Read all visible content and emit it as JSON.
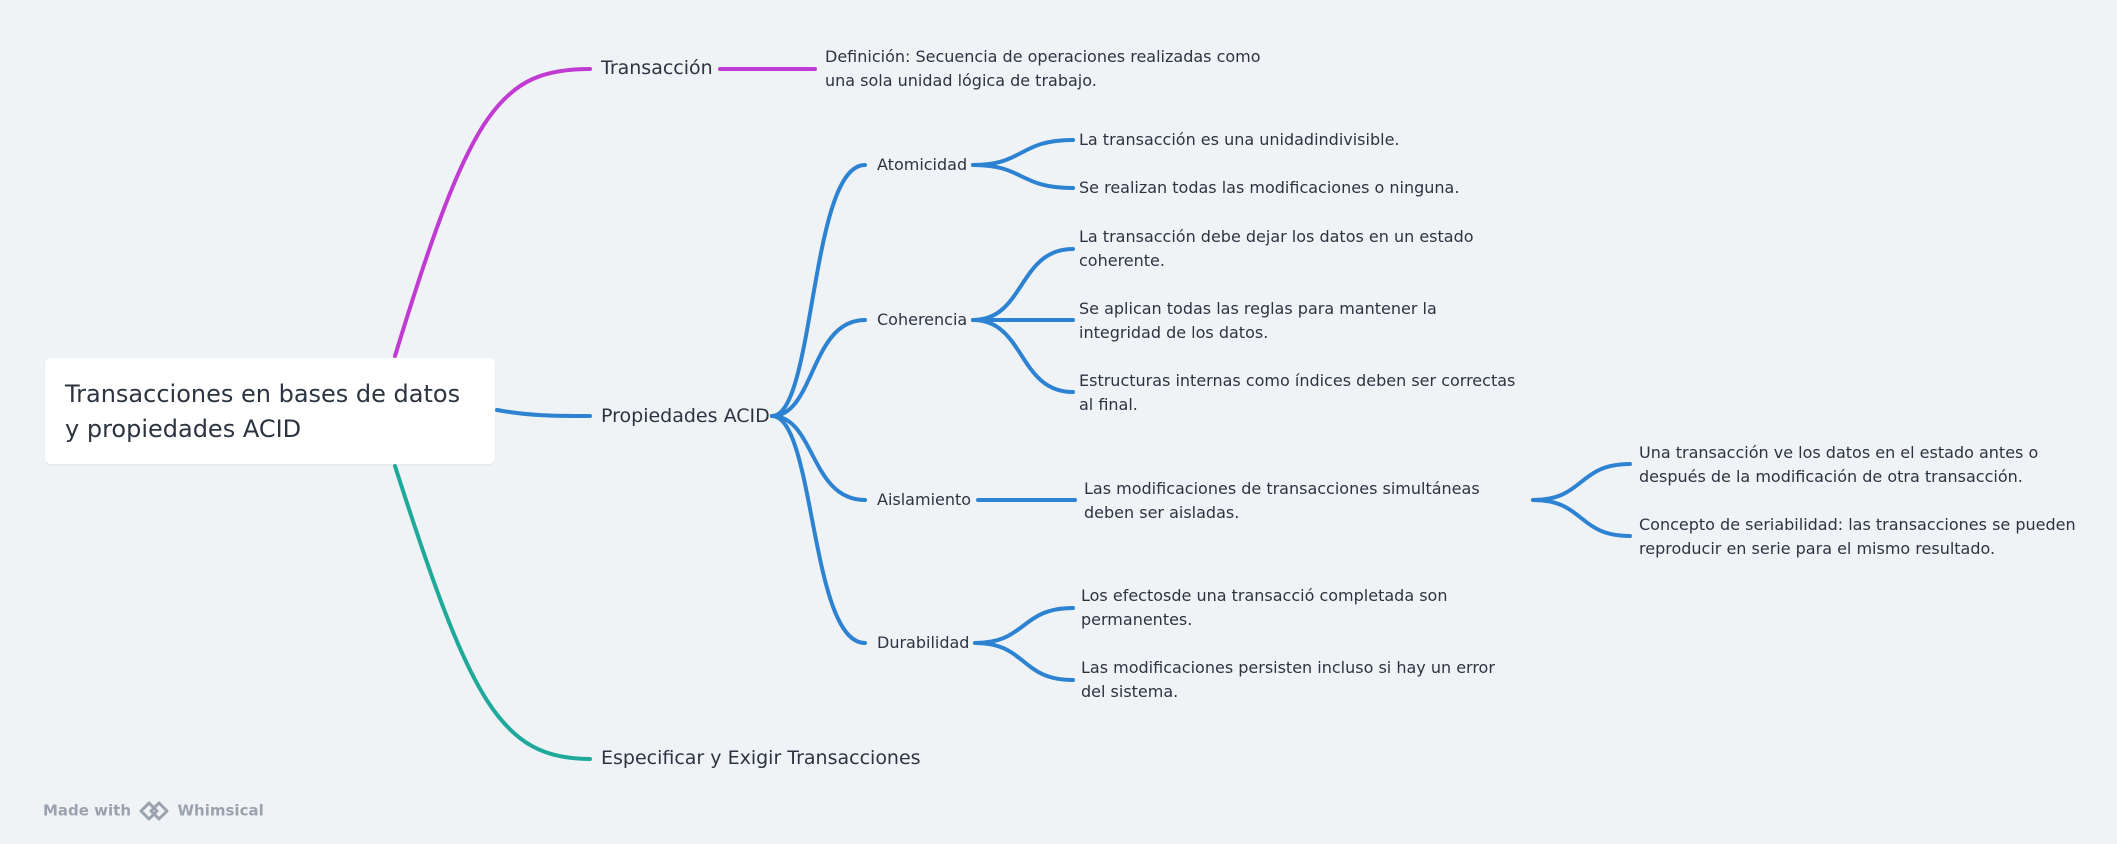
{
  "root": {
    "title": "Transacciones en bases de datos y propiedades ACID"
  },
  "branches": {
    "transaccion": {
      "label": "Transacción",
      "color": "#c03bd1",
      "definition": "Definición: Secuencia de operaciones realizadas como una sola unidad lógica de trabajo."
    },
    "acid": {
      "label": "Propiedades ACID",
      "color": "#2d82d2",
      "children": {
        "atomicidad": {
          "label": "Atomicidad",
          "leaves": [
            "La transacción es una unidadindivisible.",
            "Se realizan todas las modificaciones o ninguna."
          ]
        },
        "coherencia": {
          "label": "Coherencia",
          "leaves": [
            "La transacción debe dejar los datos en un estado coherente.",
            "Se aplican todas las reglas para mantener la integridad de los datos.",
            "Estructuras internas como índices deben ser correctas al final."
          ]
        },
        "aislamiento": {
          "label": "Aislamiento",
          "summary": "Las modificaciones de transacciones simultáneas deben ser aisladas.",
          "leaves": [
            "Una transacción ve los datos en el estado antes o después de la modificación de otra transacción.",
            "Concepto de seriabilidad: las transacciones se pueden reproducir en serie para el mismo resultado."
          ]
        },
        "durabilidad": {
          "label": "Durabilidad",
          "leaves": [
            "Los efectosde una transacció completada son permanentes.",
            "Las modificaciones persisten incluso si hay un error del sistema."
          ]
        }
      }
    },
    "especificar": {
      "label": "Especificar y Exigir Transacciones",
      "color": "#1fa99a"
    }
  },
  "watermark": {
    "prefix": "Made with",
    "brand": "Whimsical",
    "logo_icon": "whimsical-logo-icon"
  }
}
